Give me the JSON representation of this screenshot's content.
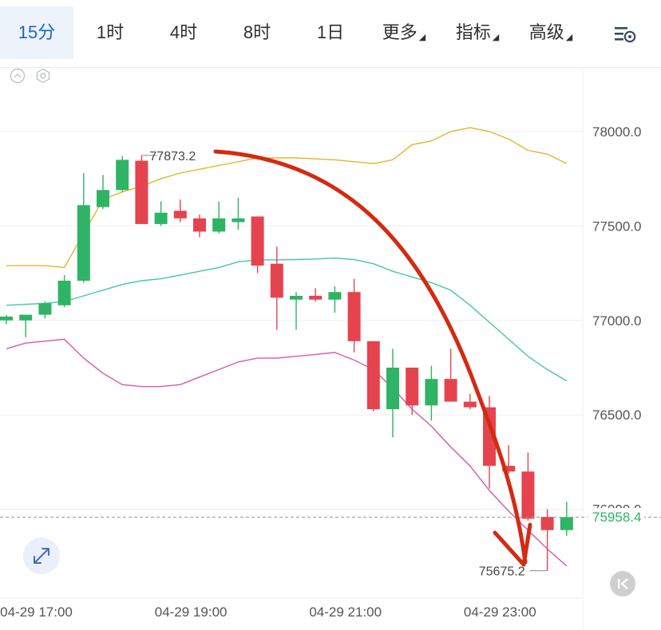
{
  "tabs": [
    {
      "label": "15分",
      "active": true
    },
    {
      "label": "1时"
    },
    {
      "label": "4时"
    },
    {
      "label": "8时"
    },
    {
      "label": "1日"
    },
    {
      "label": "更多",
      "dropdown": true
    },
    {
      "label": "指标",
      "dropdown": true
    },
    {
      "label": "高级",
      "dropdown": true
    }
  ],
  "icons": {
    "settings": "candle-settings-icon",
    "collapse": "collapse-circle-icon",
    "indicator": "hexagon-settings-icon",
    "expand": "expand-arrows-icon",
    "back": "skip-back-icon"
  },
  "colors": {
    "up": "#2eb464",
    "down": "#e5444f",
    "boll_upper": "#e8b32d",
    "boll_mid": "#3ec9a7",
    "boll_lower": "#d45aab",
    "annotation_arrow": "#d42a12",
    "active_tab": "#1b64c8"
  },
  "current_price": "75958.4",
  "chart_data": {
    "type": "candlestick",
    "interval": "15分",
    "y_ticks": [
      "78000.0",
      "77500.0",
      "77000.0",
      "76500.0",
      "76000.0"
    ],
    "ylim": [
      75530,
      78240
    ],
    "x_ticks": [
      "04-29 17:00",
      "04-29 19:00",
      "04-29 21:00",
      "04-29 23:00"
    ],
    "max_label": "77873.2",
    "min_label": "75675.2",
    "candles": [
      {
        "o": 77000,
        "h": 77030,
        "l": 76980,
        "c": 77020
      },
      {
        "o": 77000,
        "h": 77030,
        "l": 76910,
        "c": 77030
      },
      {
        "o": 77030,
        "h": 77100,
        "l": 77010,
        "c": 77090
      },
      {
        "o": 77080,
        "h": 77240,
        "l": 77070,
        "c": 77210
      },
      {
        "o": 77210,
        "h": 77780,
        "l": 77200,
        "c": 77610
      },
      {
        "o": 77600,
        "h": 77770,
        "l": 77590,
        "c": 77690
      },
      {
        "o": 77690,
        "h": 77870,
        "l": 77680,
        "c": 77850
      },
      {
        "o": 77845,
        "h": 77873.2,
        "l": 77510,
        "c": 77510
      },
      {
        "o": 77510,
        "h": 77630,
        "l": 77500,
        "c": 77570
      },
      {
        "o": 77580,
        "h": 77640,
        "l": 77520,
        "c": 77540
      },
      {
        "o": 77540,
        "h": 77560,
        "l": 77440,
        "c": 77470
      },
      {
        "o": 77470,
        "h": 77630,
        "l": 77460,
        "c": 77540
      },
      {
        "o": 77520,
        "h": 77650,
        "l": 77480,
        "c": 77540
      },
      {
        "o": 77550,
        "h": 77550,
        "l": 77250,
        "c": 77290
      },
      {
        "o": 77300,
        "h": 77390,
        "l": 76950,
        "c": 77120
      },
      {
        "o": 77110,
        "h": 77150,
        "l": 76950,
        "c": 77130
      },
      {
        "o": 77130,
        "h": 77170,
        "l": 77100,
        "c": 77110
      },
      {
        "o": 77110,
        "h": 77180,
        "l": 77040,
        "c": 77150
      },
      {
        "o": 77150,
        "h": 77220,
        "l": 76830,
        "c": 76890
      },
      {
        "o": 76890,
        "h": 76890,
        "l": 76520,
        "c": 76530
      },
      {
        "o": 76530,
        "h": 76850,
        "l": 76380,
        "c": 76750
      },
      {
        "o": 76750,
        "h": 76750,
        "l": 76500,
        "c": 76550
      },
      {
        "o": 76550,
        "h": 76760,
        "l": 76470,
        "c": 76690
      },
      {
        "o": 76690,
        "h": 76850,
        "l": 76570,
        "c": 76570
      },
      {
        "o": 76570,
        "h": 76610,
        "l": 76530,
        "c": 76540
      },
      {
        "o": 76540,
        "h": 76600,
        "l": 76110,
        "c": 76230
      },
      {
        "o": 76230,
        "h": 76340,
        "l": 76190,
        "c": 76200
      },
      {
        "o": 76200,
        "h": 76300,
        "l": 75940,
        "c": 75950
      },
      {
        "o": 75960,
        "h": 76000,
        "l": 75675.2,
        "c": 75890
      },
      {
        "o": 75890,
        "h": 76040,
        "l": 75860,
        "c": 75958.4
      }
    ],
    "boll_upper": [
      77290,
      77290,
      77290,
      77280,
      77460,
      77640,
      77680,
      77710,
      77750,
      77780,
      77800,
      77820,
      77840,
      77860,
      77860,
      77860,
      77855,
      77850,
      77840,
      77830,
      77850,
      77930,
      77950,
      78000,
      78020,
      78000,
      77960,
      77900,
      77880,
      77830
    ],
    "boll_mid": [
      77080,
      77085,
      77090,
      77100,
      77130,
      77160,
      77190,
      77210,
      77220,
      77240,
      77260,
      77280,
      77310,
      77320,
      77320,
      77322,
      77325,
      77330,
      77322,
      77300,
      77260,
      77230,
      77200,
      77160,
      77080,
      76990,
      76900,
      76810,
      76740,
      76680
    ],
    "boll_lower": [
      76850,
      76880,
      76890,
      76900,
      76800,
      76720,
      76660,
      76650,
      76650,
      76660,
      76700,
      76740,
      76780,
      76800,
      76800,
      76810,
      76820,
      76830,
      76790,
      76740,
      76640,
      76530,
      76440,
      76330,
      76230,
      76100,
      75990,
      75890,
      75790,
      75700
    ],
    "annotation": "hand-drawn downward arrow from 19:00 to the 23:00 low"
  }
}
